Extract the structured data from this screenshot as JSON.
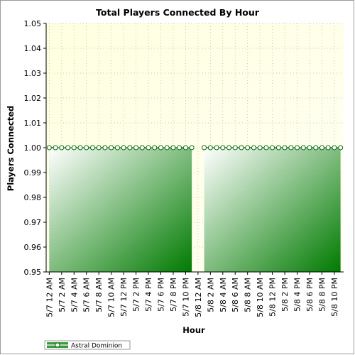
{
  "chart_data": {
    "type": "line",
    "title": "Total Players Connected By Hour",
    "xlabel": "Hour",
    "ylabel": "Players Connected",
    "ylim": [
      0.95,
      1.05
    ],
    "yticks": [
      "0.95",
      "0.96",
      "0.97",
      "0.98",
      "0.99",
      "1.00",
      "1.01",
      "1.02",
      "1.03",
      "1.04",
      "1.05"
    ],
    "xticks": [
      "5/7 12 AM",
      "5/7 2 AM",
      "5/7 4 AM",
      "5/7 6 AM",
      "5/7 8 AM",
      "5/7 10 AM",
      "5/7 12 PM",
      "5/7 2 PM",
      "5/7 4 PM",
      "5/7 6 PM",
      "5/7 8 PM",
      "5/7 10 PM",
      "5/8 12 AM",
      "5/8 2 AM",
      "5/8 4 AM",
      "5/8 6 AM",
      "5/8 8 AM",
      "5/8 10 AM",
      "5/8 12 PM",
      "5/8 2 PM",
      "5/8 4 PM",
      "5/8 6 PM",
      "5/8 8 PM",
      "5/8 10 PM"
    ],
    "x_hour_start": "5/7 12 AM",
    "grid": true,
    "legend_position": "bottom-left",
    "series": [
      {
        "name": "Astral Dominion",
        "color": "#007a00",
        "segments": [
          {
            "from_hour": 0,
            "to_hour": 23,
            "value": 1.0
          },
          {
            "from_hour": 25,
            "to_hour": 47,
            "value": 1.0
          }
        ]
      }
    ]
  }
}
